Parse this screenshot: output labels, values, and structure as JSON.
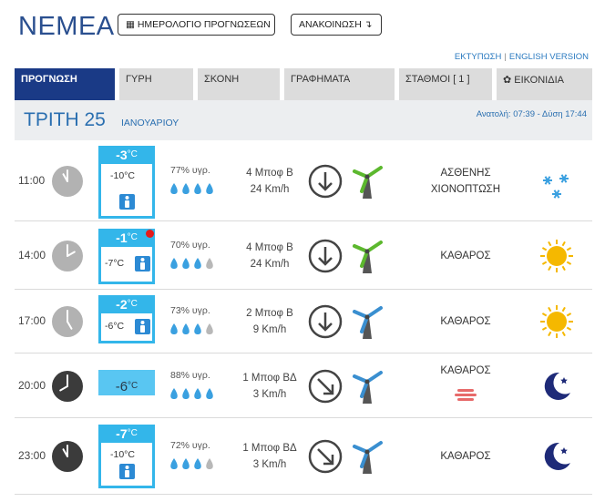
{
  "header": {
    "town": "ΝΕΜΕΑ",
    "calendar_button": "ΗΜΕΡΟΛΟΓΙΟ ΠΡΟΓΝΩΣΕΩΝ",
    "announcement_button": "ΑΝΑΚΟΙΝΩΣΗ",
    "print_link": "ΕΚΤΥΠΩΣΗ",
    "links_separator": "|",
    "english_link": "ENGLISH VERSION"
  },
  "tabs": [
    {
      "label": "ΠΡΟΓΝΩΣΗ",
      "active": true
    },
    {
      "label": "ΓΥΡΗ",
      "active": false
    },
    {
      "label": "ΣΚΟΝΗ",
      "active": false
    },
    {
      "label": "ΓΡΑΦΗΜΑΤΑ",
      "active": false
    },
    {
      "label": "ΣΤΑΘΜΟΙ [ 1 ]",
      "active": false
    },
    {
      "label": "ΕΙΚΟΝΙΔΙΑ",
      "active": false
    }
  ],
  "day": {
    "name": "ΤΡΙΤΗ 25",
    "month": "ΙΑΝΟΥΑΡΙΟΥ",
    "sun_times": "Ανατολή: 07:39 - Δύση 17:44"
  },
  "rows": [
    {
      "time": "11:00",
      "clock_hour": 11,
      "clock_style": "day",
      "temp": "-3",
      "temp_unit": "°C",
      "feels": "-10°C",
      "alert": false,
      "humidity": "77% υγρ.",
      "humidity_drops": 4,
      "wind_bft": "4 Μποφ Β",
      "wind_kmh": "24 Km/h",
      "wind_arrow": "south",
      "turbine_color": "green",
      "cond1": "ΑΣΘΕΝΗΣ",
      "cond2": "ΧΙΟΝΟΠΤΩΣΗ",
      "icon": "snowflake-icon"
    },
    {
      "time": "14:00",
      "clock_hour": 2,
      "clock_style": "day",
      "temp": "-1",
      "temp_unit": "°C",
      "feels": "-7°C",
      "alert": true,
      "humidity": "70% υγρ.",
      "humidity_drops": 3,
      "wind_bft": "4 Μποφ Β",
      "wind_kmh": "24 Km/h",
      "wind_arrow": "south",
      "turbine_color": "green",
      "cond1": "ΚΑΘΑΡΟΣ",
      "cond2": "",
      "icon": "sun-icon"
    },
    {
      "time": "17:00",
      "clock_hour": 5,
      "clock_style": "day",
      "temp": "-2",
      "temp_unit": "°C",
      "feels": "-6°C",
      "alert": false,
      "humidity": "73% υγρ.",
      "humidity_drops": 3,
      "wind_bft": "2 Μποφ Β",
      "wind_kmh": "9 Km/h",
      "wind_arrow": "south",
      "turbine_color": "blue",
      "cond1": "ΚΑΘΑΡΟΣ",
      "cond2": "",
      "icon": "sun-icon"
    },
    {
      "time": "20:00",
      "clock_hour": 8,
      "clock_style": "night",
      "temp": "-6",
      "temp_unit": "°C",
      "feels": "",
      "alert": false,
      "humidity": "88% υγρ.",
      "humidity_drops": 4,
      "wind_bft": "1 Μποφ ΒΔ",
      "wind_kmh": "3 Km/h",
      "wind_arrow": "southeast",
      "turbine_color": "blue",
      "cond1": "ΚΑΘΑΡΟΣ",
      "cond2": "",
      "icon": "moon-icon",
      "haze": true
    },
    {
      "time": "23:00",
      "clock_hour": 11,
      "clock_style": "night",
      "temp": "-7",
      "temp_unit": "°C",
      "feels": "-10°C",
      "alert": false,
      "humidity": "72% υγρ.",
      "humidity_drops": 3,
      "wind_bft": "1 Μποφ ΒΔ",
      "wind_kmh": "3 Km/h",
      "wind_arrow": "southeast",
      "turbine_color": "blue",
      "cond1": "ΚΑΘΑΡΟΣ",
      "cond2": "",
      "icon": "moon-icon"
    }
  ],
  "colors": {
    "brand": "#2a4f8f",
    "active_tab": "#1a3a86",
    "temp_box": "#33b6ea",
    "turbine_green": "#5cb82e",
    "turbine_blue": "#3a8fd0",
    "sun": "#f5b800",
    "moon": "#1e2a78"
  }
}
